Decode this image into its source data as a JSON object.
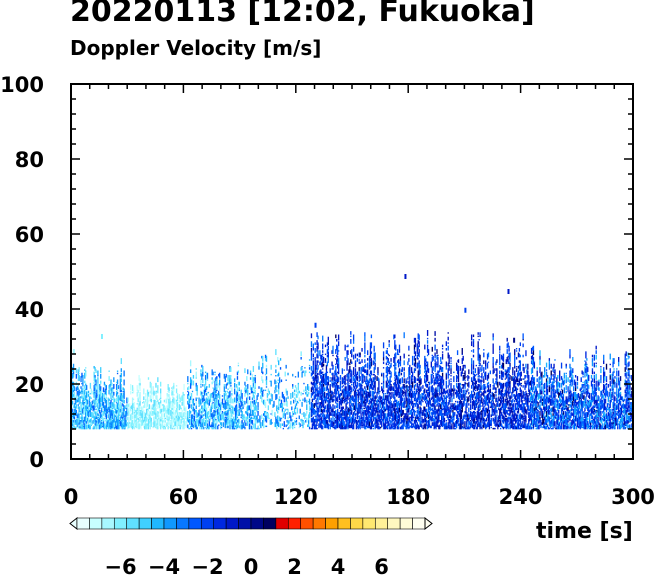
{
  "title": "20220113 [12:02, Fukuoka]",
  "subtitle": "Doppler Velocity [m/s]",
  "chart_data": {
    "type": "heatmap",
    "title": "20220113 [12:02, Fukuoka]",
    "subtitle": "Doppler Velocity [m/s]",
    "xlabel": "time [s]",
    "ylabel": "",
    "xlim": [
      0,
      300
    ],
    "ylim": [
      0,
      100
    ],
    "x_ticks": [
      0,
      60,
      120,
      180,
      240,
      300
    ],
    "y_ticks": [
      0,
      20,
      40,
      60,
      80,
      100
    ],
    "x_tick_labels": [
      "0",
      "60",
      "120",
      "180",
      "240",
      "300"
    ],
    "y_tick_labels": [
      "0",
      "20",
      "40",
      "60",
      "80",
      "100"
    ],
    "grid": false,
    "colorbar": {
      "orientation": "horizontal",
      "range": [
        -8,
        8
      ],
      "tick_values": [
        -6,
        -4,
        -2,
        0,
        2,
        4,
        6
      ],
      "tick_labels": [
        "−6",
        "−4",
        "−2",
        "0",
        "2",
        "4",
        "6"
      ],
      "colors": [
        "#e8ffff",
        "#c8ffff",
        "#a8f8ff",
        "#80f0ff",
        "#60e0ff",
        "#40d0ff",
        "#20b8ff",
        "#1098ff",
        "#0878ff",
        "#0058ff",
        "#0040f0",
        "#0028e0",
        "#0018c8",
        "#0010a8",
        "#000888",
        "#000060",
        "#e00000",
        "#ff2000",
        "#ff5000",
        "#ff7800",
        "#ffa000",
        "#ffc020",
        "#ffd848",
        "#ffe870",
        "#fff098",
        "#fff8c0",
        "#fffcd8",
        "#fffff0"
      ]
    },
    "data_summary": {
      "velocity_min_shown": -7,
      "velocity_max_shown": 1,
      "height_min": 8,
      "height_max": 48
    },
    "segments": [
      {
        "t_start": 0,
        "t_end": 30,
        "h_min": 8,
        "h_max": 26,
        "v_mean": -4.5,
        "v_spread": 1.8,
        "density": 0.55
      },
      {
        "t_start": 30,
        "t_end": 62,
        "h_min": 8,
        "h_max": 22,
        "v_mean": -6.3,
        "v_spread": 0.9,
        "density": 0.5
      },
      {
        "t_start": 62,
        "t_end": 100,
        "h_min": 8,
        "h_max": 26,
        "v_mean": -4.5,
        "v_spread": 2.2,
        "density": 0.38
      },
      {
        "t_start": 100,
        "t_end": 128,
        "h_min": 8,
        "h_max": 30,
        "v_mean": -4.5,
        "v_spread": 2.0,
        "density": 0.15
      },
      {
        "t_start": 128,
        "t_end": 200,
        "h_min": 8,
        "h_max": 34,
        "v_mean": -1.8,
        "v_spread": 1.4,
        "density": 0.45
      },
      {
        "t_start": 200,
        "t_end": 245,
        "h_min": 8,
        "h_max": 34,
        "v_mean": -1.5,
        "v_spread": 1.5,
        "density": 0.4
      },
      {
        "t_start": 245,
        "t_end": 300,
        "h_min": 8,
        "h_max": 30,
        "v_mean": -2.5,
        "v_spread": 1.8,
        "density": 0.5
      }
    ],
    "outliers": [
      {
        "t": 178,
        "h": 48,
        "v": -1
      },
      {
        "t": 233,
        "h": 44,
        "v": -1
      },
      {
        "t": 210,
        "h": 39,
        "v": -2
      },
      {
        "t": 130,
        "h": 35,
        "v": -2
      },
      {
        "t": 236,
        "h": 31,
        "v": 0.5
      },
      {
        "t": 16,
        "h": 32,
        "v": -6
      },
      {
        "t": 1,
        "h": 28,
        "v": -6.5
      }
    ]
  }
}
